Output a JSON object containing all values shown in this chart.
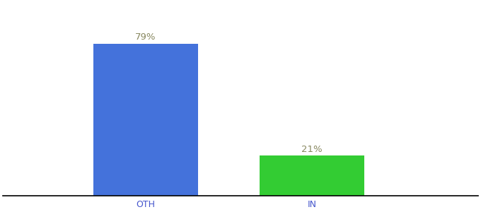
{
  "categories": [
    "OTH",
    "IN"
  ],
  "values": [
    79,
    21
  ],
  "bar_colors": [
    "#4472db",
    "#33cc33"
  ],
  "label_texts": [
    "79%",
    "21%"
  ],
  "label_color": "#888860",
  "background_color": "#ffffff",
  "ylim": [
    0,
    100
  ],
  "bar_width": 0.22,
  "label_fontsize": 9.5,
  "tick_fontsize": 9,
  "tick_color": "#4455cc",
  "spine_color": "#000000",
  "positions": [
    0.3,
    0.65
  ]
}
